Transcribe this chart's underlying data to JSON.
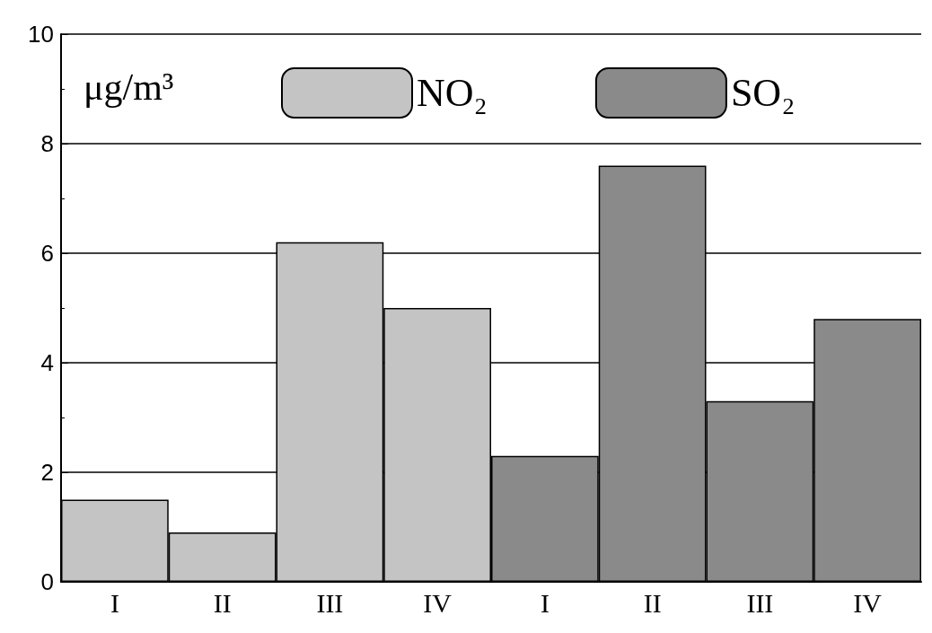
{
  "chart_data": {
    "type": "bar",
    "ylabel": "μg/m³",
    "categories": [
      "I",
      "II",
      "III",
      "IV",
      "I",
      "II",
      "III",
      "IV"
    ],
    "series": [
      {
        "name": "NO₂",
        "color": "#c4c4c4",
        "values": [
          1.5,
          0.9,
          6.2,
          5.0,
          null,
          null,
          null,
          null
        ]
      },
      {
        "name": "SO₂",
        "color": "#8a8a8a",
        "values": [
          null,
          null,
          null,
          null,
          2.3,
          7.6,
          3.3,
          4.8
        ]
      }
    ],
    "ylim": [
      0,
      10
    ],
    "yticks": [
      0,
      2,
      4,
      6,
      8,
      10
    ],
    "grid": "y",
    "legend": "top"
  }
}
